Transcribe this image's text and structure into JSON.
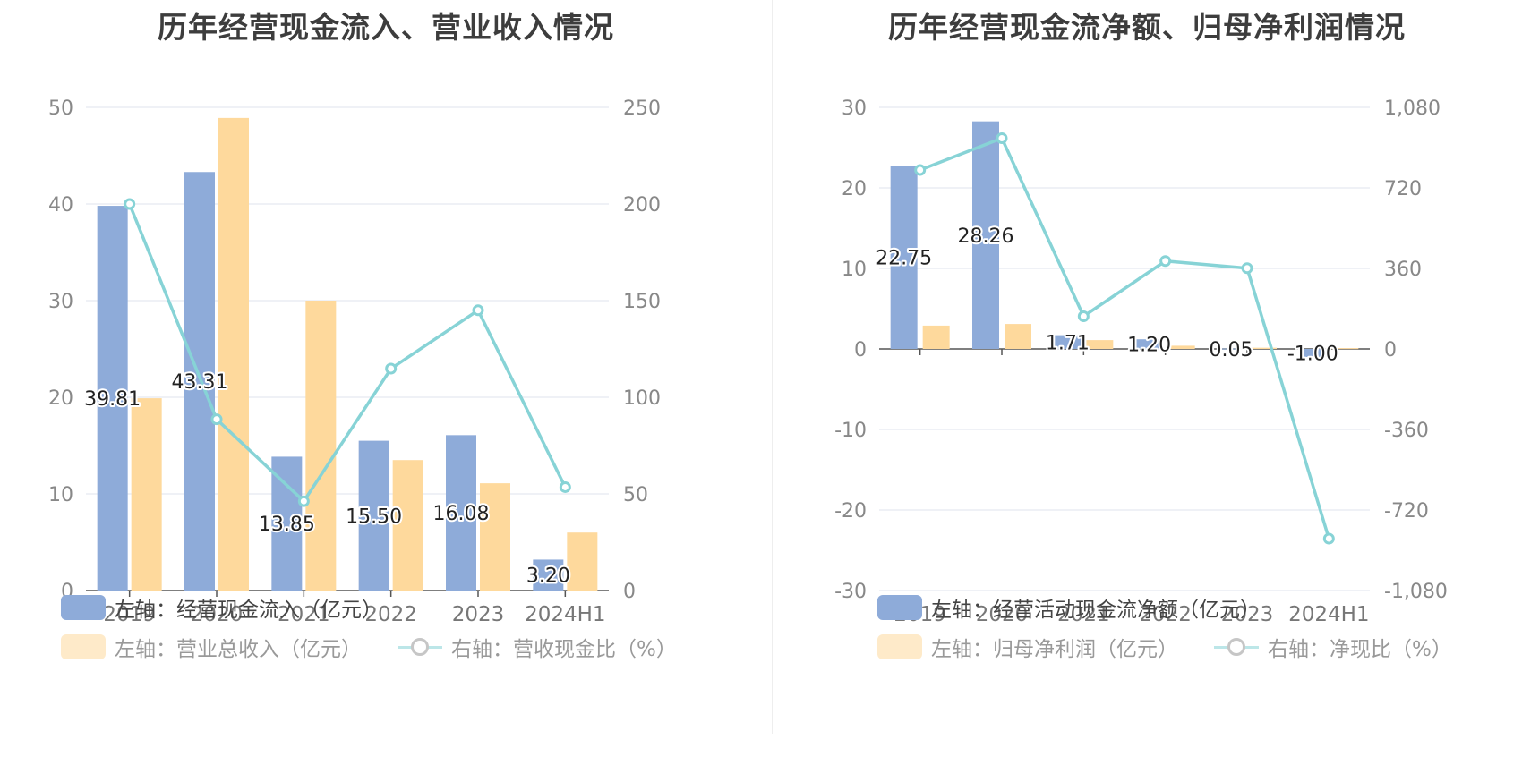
{
  "colors": {
    "bar_primary": "#8eabd9",
    "bar_secondary": "#fed99c",
    "line": "#87d3d6",
    "grid": "#dfe3ee",
    "axis": "#555555"
  },
  "chart_data": [
    {
      "type": "bar",
      "title": "历年经营现金流入、营业收入情况",
      "categories": [
        "2019",
        "2020",
        "2021",
        "2022",
        "2023",
        "2024H1"
      ],
      "left_axis": {
        "ylim": [
          0,
          50
        ],
        "ticks": [
          "0",
          "10",
          "20",
          "30",
          "40",
          "50"
        ]
      },
      "right_axis": {
        "ylim": [
          0,
          250
        ],
        "ticks": [
          "0",
          "50",
          "100",
          "150",
          "200",
          "250"
        ]
      },
      "series": [
        {
          "name": "左轴：经营现金流入（亿元）",
          "axis": "left",
          "kind": "bar",
          "values": [
            39.81,
            43.31,
            13.85,
            15.5,
            16.08,
            3.2
          ],
          "labels": [
            "39.81",
            "43.31",
            "13.85",
            "15.50",
            "16.08",
            "3.20"
          ]
        },
        {
          "name": "左轴：营业总收入（亿元）",
          "axis": "left",
          "kind": "bar",
          "values": [
            19.9,
            48.9,
            30.0,
            13.5,
            11.1,
            6.0
          ]
        },
        {
          "name": "右轴：营收现金比（%）",
          "axis": "right",
          "kind": "line",
          "values": [
            200.0,
            88.6,
            46.2,
            114.8,
            145.0,
            53.5
          ]
        }
      ],
      "legend_position": "bottom"
    },
    {
      "type": "bar",
      "title": "历年经营现金流净额、归母净利润情况",
      "categories": [
        "2019",
        "2020",
        "2021",
        "2022",
        "2023",
        "2024H1"
      ],
      "left_axis": {
        "ylim": [
          -30,
          30
        ],
        "ticks": [
          "-30",
          "-20",
          "-10",
          "0",
          "10",
          "20",
          "30"
        ]
      },
      "right_axis": {
        "ylim": [
          -1080,
          1080
        ],
        "ticks": [
          "-1,080",
          "-720",
          "-360",
          "0",
          "360",
          "720",
          "1,080"
        ]
      },
      "series": [
        {
          "name": "左轴：经营活动现金流净额（亿元）",
          "axis": "left",
          "kind": "bar",
          "values": [
            22.75,
            28.26,
            1.71,
            1.2,
            0.05,
            -1.0
          ],
          "labels": [
            "22.75",
            "28.26",
            "1.71",
            "1.20",
            "0.05",
            "-1.00"
          ]
        },
        {
          "name": "左轴：归母净利润（亿元）",
          "axis": "left",
          "kind": "bar",
          "values": [
            2.9,
            3.1,
            1.1,
            0.4,
            0.15,
            0.1
          ]
        },
        {
          "name": "右轴：净现比（%）",
          "axis": "right",
          "kind": "line",
          "values": [
            800,
            942,
            146,
            393,
            361,
            -848
          ]
        }
      ],
      "legend_position": "bottom"
    }
  ]
}
